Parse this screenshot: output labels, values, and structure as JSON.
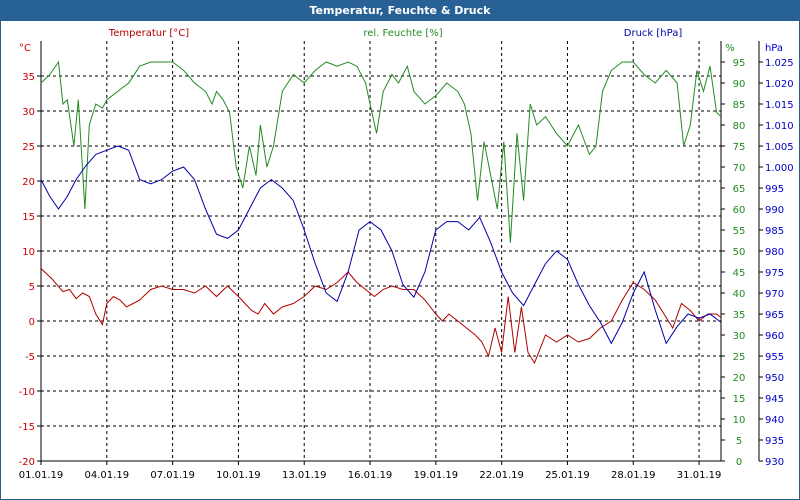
{
  "chart_data": {
    "type": "line",
    "title": "Temperatur, Feuchte & Druck",
    "x_ticks": [
      "01.01.19",
      "04.01.19",
      "07.01.19",
      "10.01.19",
      "13.01.19",
      "16.01.19",
      "19.01.19",
      "22.01.19",
      "25.01.19",
      "28.01.19",
      "31.01.19"
    ],
    "x_range_days": [
      0,
      31
    ],
    "axes": {
      "left": {
        "unit": "°C",
        "min": -20,
        "max": 40,
        "ticks": [
          -20,
          -15,
          -10,
          -5,
          0,
          5,
          10,
          15,
          20,
          25,
          30,
          35
        ],
        "color": "#cc0000"
      },
      "middle": {
        "unit": "%",
        "min": 0,
        "max": 100,
        "ticks": [
          0,
          5,
          10,
          15,
          20,
          25,
          30,
          35,
          40,
          45,
          50,
          55,
          60,
          65,
          70,
          75,
          80,
          85,
          90,
          95
        ],
        "color": "#228b22"
      },
      "right": {
        "unit": "hPa",
        "min": 930,
        "max": 1030,
        "ticks": [
          930,
          935,
          940,
          945,
          950,
          955,
          960,
          965,
          970,
          975,
          980,
          985,
          990,
          995,
          1000,
          1005,
          1010,
          1015,
          1020,
          1025
        ],
        "tick_labels": [
          "930",
          "935",
          "940",
          "945",
          "950",
          "955",
          "960",
          "965",
          "970",
          "975",
          "980",
          "985",
          "990",
          "995",
          "1.000",
          "1.005",
          "1.010",
          "1.015",
          "1.020",
          "1.025"
        ],
        "color": "#0000cc"
      }
    },
    "series": [
      {
        "name": "Temperatur [°C]",
        "axis": "left",
        "color": "#b00000",
        "x": [
          0,
          0.5,
          1,
          1.3,
          1.6,
          1.9,
          2.2,
          2.5,
          2.8,
          3,
          3.3,
          3.6,
          3.9,
          4.2,
          4.5,
          5,
          5.5,
          6,
          6.5,
          7,
          7.5,
          8,
          8.5,
          9,
          9.3,
          9.6,
          9.9,
          10.2,
          10.6,
          11,
          11.5,
          12,
          12.5,
          13,
          13.5,
          14,
          14.4,
          14.8,
          15.2,
          15.6,
          16,
          16.5,
          17,
          17.5,
          18,
          18.3,
          18.6,
          19,
          19.4,
          19.8,
          20.1,
          20.4,
          20.7,
          21,
          21.3,
          21.6,
          21.9,
          22.2,
          22.5,
          23,
          23.5,
          24,
          24.5,
          25,
          25.5,
          26,
          26.5,
          27,
          27.5,
          28,
          28.4,
          28.8,
          29.2,
          29.6,
          30,
          30.4,
          30.8,
          31
        ],
        "values": [
          7.5,
          6,
          4.2,
          4.5,
          3.2,
          4,
          3.5,
          1,
          -0.5,
          2.5,
          3.5,
          3,
          2,
          2.5,
          3,
          4.5,
          5,
          4.5,
          4.5,
          4,
          5,
          3.5,
          5,
          3.5,
          2.5,
          1.5,
          1,
          2.5,
          1,
          2,
          2.5,
          3.5,
          5,
          4.5,
          5.5,
          7,
          5.5,
          4.5,
          3.5,
          4.5,
          5,
          4.5,
          4.5,
          3,
          1,
          0,
          1,
          0,
          -1,
          -2,
          -3,
          -5,
          -1,
          -4.5,
          3.5,
          -4.5,
          2,
          -4.5,
          -6,
          -2,
          -3,
          -2,
          -3,
          -2.5,
          -1,
          0,
          3,
          5.5,
          4.5,
          3,
          1,
          -1,
          2.5,
          1.5,
          0,
          1,
          1,
          0.5
        ]
      },
      {
        "name": "rel. Feuchte [%]",
        "axis": "middle",
        "color": "#228b22",
        "x": [
          0,
          0.4,
          0.8,
          1,
          1.2,
          1.5,
          1.7,
          2,
          2.2,
          2.5,
          2.8,
          3,
          3.5,
          4,
          4.5,
          5,
          5.5,
          6,
          6.5,
          7,
          7.5,
          7.8,
          8,
          8.3,
          8.6,
          8.9,
          9.2,
          9.5,
          9.8,
          10,
          10.3,
          10.6,
          11,
          11.5,
          12,
          12.5,
          13,
          13.5,
          14,
          14.4,
          14.8,
          15,
          15.3,
          15.6,
          16,
          16.3,
          16.7,
          17,
          17.5,
          18,
          18.5,
          19,
          19.3,
          19.6,
          19.9,
          20.2,
          20.5,
          20.8,
          21.1,
          21.4,
          21.7,
          22,
          22.3,
          22.6,
          23,
          23.5,
          24,
          24.5,
          25,
          25.3,
          25.6,
          26,
          26.5,
          27,
          27.5,
          28,
          28.5,
          29,
          29.3,
          29.6,
          29.9,
          30.2,
          30.5,
          30.8,
          31
        ],
        "values": [
          90,
          92,
          95,
          85,
          86,
          75,
          86,
          60,
          80,
          85,
          84,
          86,
          88,
          90,
          94,
          95,
          95,
          95,
          93,
          90,
          88,
          85,
          88,
          86,
          83,
          70,
          65,
          75,
          68,
          80,
          70,
          75,
          88,
          92,
          90,
          93,
          95,
          94,
          95,
          94,
          90,
          85,
          78,
          88,
          92,
          90,
          94,
          88,
          85,
          87,
          90,
          88,
          85,
          78,
          62,
          76,
          68,
          60,
          76,
          52,
          78,
          62,
          85,
          80,
          82,
          78,
          75,
          80,
          73,
          75,
          88,
          93,
          95,
          95,
          92,
          90,
          93,
          90,
          75,
          80,
          93,
          88,
          94,
          83,
          82
        ]
      },
      {
        "name": "Druck [hPa]",
        "axis": "right",
        "color": "#0000aa",
        "x": [
          0,
          0.4,
          0.8,
          1.2,
          1.6,
          2,
          2.5,
          3,
          3.5,
          4,
          4.5,
          5,
          5.5,
          6,
          6.5,
          7,
          7.5,
          8,
          8.5,
          9,
          9.5,
          10,
          10.5,
          11,
          11.5,
          12,
          12.5,
          13,
          13.5,
          14,
          14.5,
          15,
          15.5,
          16,
          16.5,
          17,
          17.5,
          18,
          18.5,
          19,
          19.5,
          20,
          20.5,
          21,
          21.5,
          22,
          22.5,
          23,
          23.5,
          24,
          24.5,
          25,
          25.5,
          26,
          26.5,
          27,
          27.5,
          28,
          28.5,
          29,
          29.5,
          30,
          30.5,
          31
        ],
        "values": [
          997,
          993,
          990,
          993,
          997,
          1000,
          1003,
          1004,
          1005,
          1004,
          997,
          996,
          997,
          999,
          1000,
          997,
          990,
          984,
          983,
          985,
          990,
          995,
          997,
          995,
          992,
          985,
          977,
          970,
          968,
          975,
          985,
          987,
          985,
          980,
          972,
          969,
          975,
          985,
          987,
          987,
          985,
          988,
          982,
          975,
          970,
          967,
          972,
          977,
          980,
          978,
          972,
          967,
          963,
          958,
          963,
          970,
          975,
          966,
          958,
          962,
          965,
          964,
          965,
          963
        ]
      }
    ],
    "legend": [
      "Temperatur [°C]",
      "rel. Feuchte [%]",
      "Druck [hPa]"
    ]
  }
}
